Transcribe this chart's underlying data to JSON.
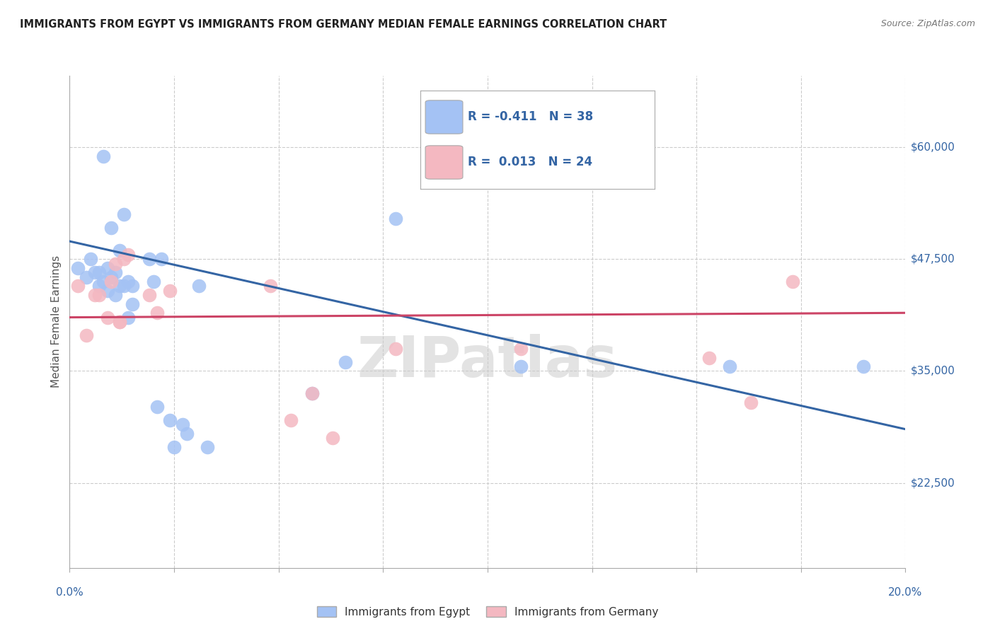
{
  "title": "IMMIGRANTS FROM EGYPT VS IMMIGRANTS FROM GERMANY MEDIAN FEMALE EARNINGS CORRELATION CHART",
  "source": "Source: ZipAtlas.com",
  "ylabel": "Median Female Earnings",
  "xlim": [
    0.0,
    0.2
  ],
  "ylim": [
    13000,
    68000
  ],
  "yticks": [
    22500,
    35000,
    47500,
    60000
  ],
  "ytick_labels": [
    "$22,500",
    "$35,000",
    "$47,500",
    "$60,000"
  ],
  "xticks": [
    0.0,
    0.025,
    0.05,
    0.075,
    0.1,
    0.125,
    0.15,
    0.175,
    0.2
  ],
  "xtick_labels": [
    "0.0%",
    "",
    "",
    "",
    "",
    "",
    "",
    "",
    "20.0%"
  ],
  "blue_color": "#a4c2f4",
  "pink_color": "#f4b8c1",
  "blue_line_color": "#3465a4",
  "pink_line_color": "#cc4466",
  "watermark": "ZIPatlas",
  "legend_R_blue": "-0.411",
  "legend_N_blue": "38",
  "legend_R_pink": "0.013",
  "legend_N_pink": "24",
  "blue_scatter_x": [
    0.002,
    0.004,
    0.005,
    0.006,
    0.007,
    0.007,
    0.008,
    0.008,
    0.009,
    0.009,
    0.01,
    0.01,
    0.011,
    0.011,
    0.012,
    0.012,
    0.013,
    0.013,
    0.014,
    0.014,
    0.015,
    0.015,
    0.019,
    0.02,
    0.021,
    0.022,
    0.024,
    0.025,
    0.027,
    0.028,
    0.031,
    0.033,
    0.058,
    0.066,
    0.078,
    0.108,
    0.158,
    0.19
  ],
  "blue_scatter_y": [
    46500,
    45500,
    47500,
    46000,
    46000,
    44500,
    59000,
    45000,
    46500,
    44000,
    51000,
    45500,
    46000,
    43500,
    48500,
    44500,
    52500,
    44500,
    45000,
    41000,
    44500,
    42500,
    47500,
    45000,
    31000,
    47500,
    29500,
    26500,
    29000,
    28000,
    44500,
    26500,
    32500,
    36000,
    52000,
    35500,
    35500,
    35500
  ],
  "pink_scatter_x": [
    0.002,
    0.004,
    0.006,
    0.007,
    0.009,
    0.01,
    0.011,
    0.012,
    0.012,
    0.013,
    0.014,
    0.019,
    0.021,
    0.024,
    0.048,
    0.053,
    0.058,
    0.063,
    0.078,
    0.108,
    0.128,
    0.153,
    0.163,
    0.173
  ],
  "pink_scatter_y": [
    44500,
    39000,
    43500,
    43500,
    41000,
    45000,
    47000,
    40500,
    40500,
    47500,
    48000,
    43500,
    41500,
    44000,
    44500,
    29500,
    32500,
    27500,
    37500,
    37500,
    57000,
    36500,
    31500,
    45000
  ],
  "blue_line_x": [
    0.0,
    0.2
  ],
  "blue_line_y": [
    49500,
    28500
  ],
  "pink_line_x": [
    0.0,
    0.2
  ],
  "pink_line_y": [
    41000,
    41500
  ],
  "background_color": "#ffffff",
  "grid_color": "#cccccc"
}
